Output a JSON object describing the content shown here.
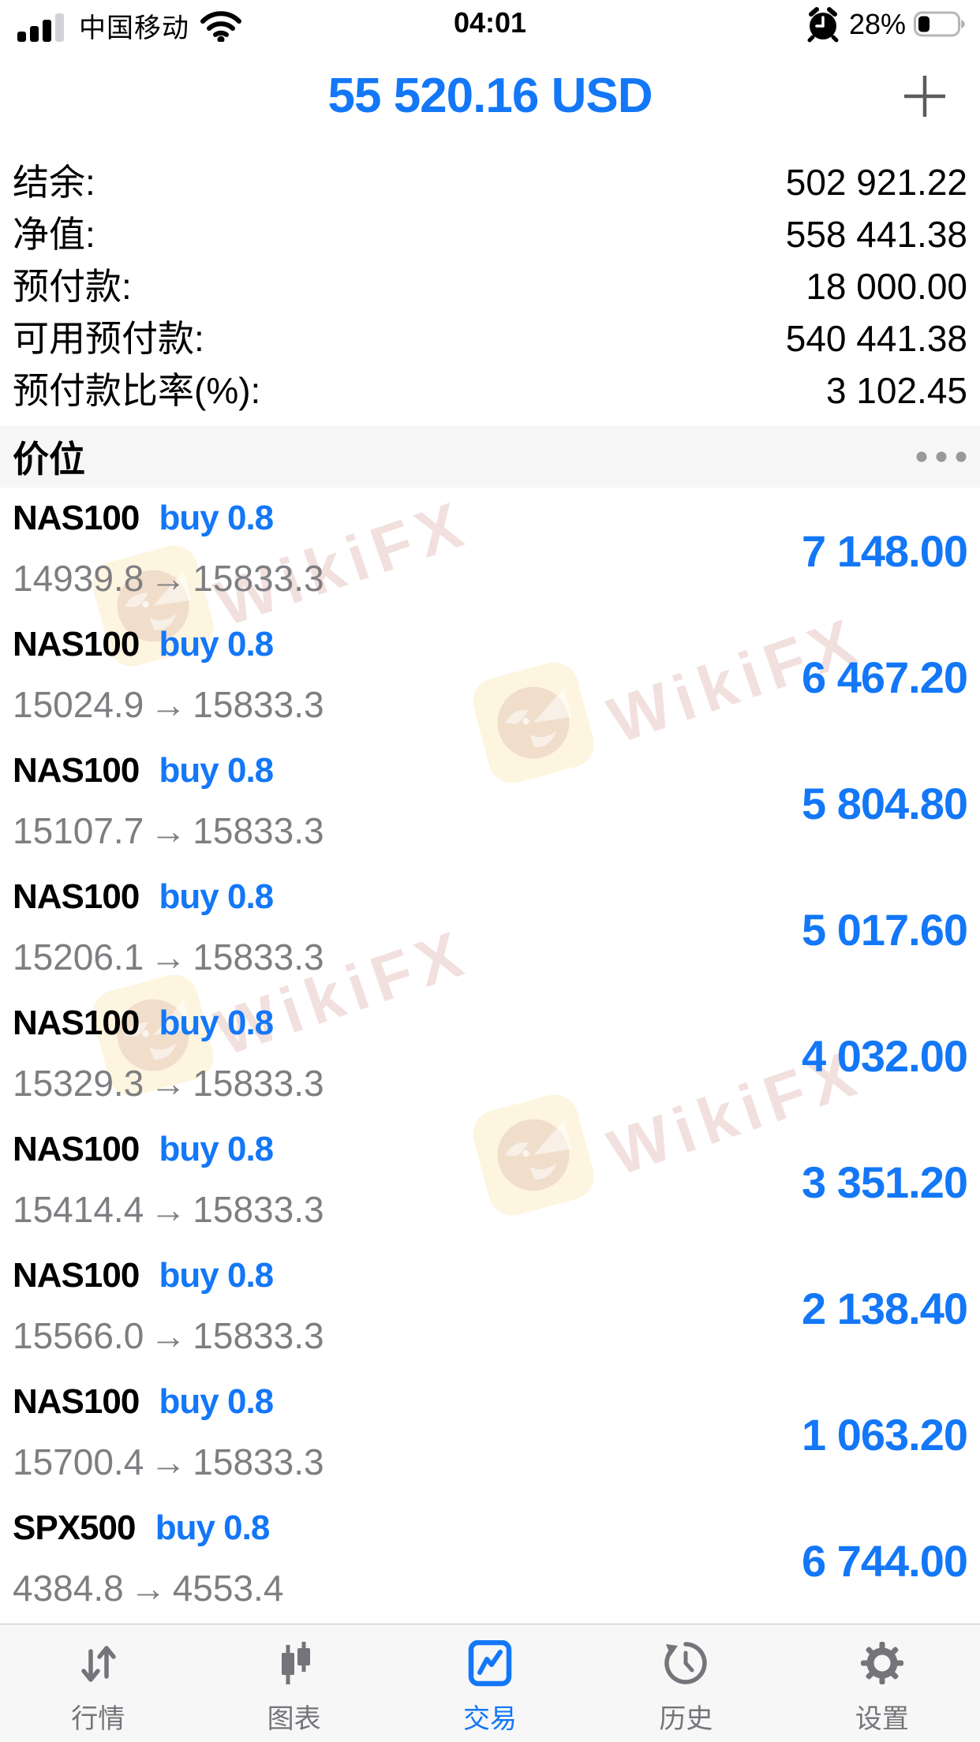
{
  "status_bar": {
    "carrier": "中国移动",
    "time": "04:01",
    "battery_percent": "28%"
  },
  "header": {
    "balance_title": "55 520.16 USD"
  },
  "account_summary": {
    "rows": [
      {
        "label": "结余:",
        "value": "502 921.22"
      },
      {
        "label": "净值:",
        "value": "558 441.38"
      },
      {
        "label": "预付款:",
        "value": "18 000.00"
      },
      {
        "label": "可用预付款:",
        "value": "540 441.38"
      },
      {
        "label": "预付款比率(%):",
        "value": "3 102.45"
      }
    ]
  },
  "positions_section": {
    "title": "价位"
  },
  "price_arrow": "→",
  "positions": [
    {
      "symbol": "NAS100",
      "side": "buy",
      "volume": "0.8",
      "open": "14939.8",
      "current": "15833.3",
      "profit": "7 148.00"
    },
    {
      "symbol": "NAS100",
      "side": "buy",
      "volume": "0.8",
      "open": "15024.9",
      "current": "15833.3",
      "profit": "6 467.20"
    },
    {
      "symbol": "NAS100",
      "side": "buy",
      "volume": "0.8",
      "open": "15107.7",
      "current": "15833.3",
      "profit": "5 804.80"
    },
    {
      "symbol": "NAS100",
      "side": "buy",
      "volume": "0.8",
      "open": "15206.1",
      "current": "15833.3",
      "profit": "5 017.60"
    },
    {
      "symbol": "NAS100",
      "side": "buy",
      "volume": "0.8",
      "open": "15329.3",
      "current": "15833.3",
      "profit": "4 032.00"
    },
    {
      "symbol": "NAS100",
      "side": "buy",
      "volume": "0.8",
      "open": "15414.4",
      "current": "15833.3",
      "profit": "3 351.20"
    },
    {
      "symbol": "NAS100",
      "side": "buy",
      "volume": "0.8",
      "open": "15566.0",
      "current": "15833.3",
      "profit": "2 138.40"
    },
    {
      "symbol": "NAS100",
      "side": "buy",
      "volume": "0.8",
      "open": "15700.4",
      "current": "15833.3",
      "profit": "1 063.20"
    },
    {
      "symbol": "SPX500",
      "side": "buy",
      "volume": "0.8",
      "open": "4384.8",
      "current": "4553.4",
      "profit": "6 744.00"
    }
  ],
  "watermark": {
    "text": "WikiFX"
  },
  "tab_bar": {
    "items": [
      {
        "name": "quotes",
        "label": "行情",
        "icon": "arrows-up-down",
        "active": false
      },
      {
        "name": "charts",
        "label": "图表",
        "icon": "candlestick",
        "active": false
      },
      {
        "name": "trade",
        "label": "交易",
        "icon": "trade-chart",
        "active": true
      },
      {
        "name": "history",
        "label": "历史",
        "icon": "history-clock",
        "active": false
      },
      {
        "name": "settings",
        "label": "设置",
        "icon": "gear",
        "active": false
      }
    ]
  },
  "colors": {
    "accent_blue": "#1377f7",
    "price_gray": "#7e7e82",
    "section_bg": "#f6f6f6"
  }
}
